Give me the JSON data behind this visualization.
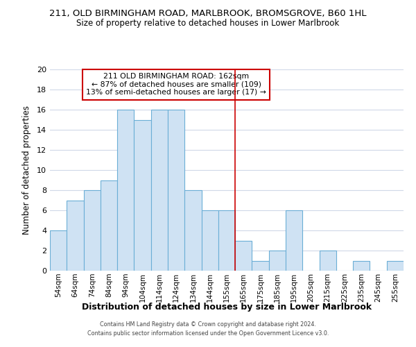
{
  "title": "211, OLD BIRMINGHAM ROAD, MARLBROOK, BROMSGROVE, B60 1HL",
  "subtitle": "Size of property relative to detached houses in Lower Marlbrook",
  "xlabel": "Distribution of detached houses by size in Lower Marlbrook",
  "ylabel": "Number of detached properties",
  "bar_labels": [
    "54sqm",
    "64sqm",
    "74sqm",
    "84sqm",
    "94sqm",
    "104sqm",
    "114sqm",
    "124sqm",
    "134sqm",
    "144sqm",
    "155sqm",
    "165sqm",
    "175sqm",
    "185sqm",
    "195sqm",
    "205sqm",
    "215sqm",
    "225sqm",
    "235sqm",
    "245sqm",
    "255sqm"
  ],
  "bar_values": [
    4,
    7,
    8,
    9,
    16,
    15,
    16,
    16,
    8,
    6,
    6,
    3,
    1,
    2,
    6,
    0,
    2,
    0,
    1,
    0,
    1
  ],
  "bar_color": "#cfe2f3",
  "bar_edgecolor": "#6baed6",
  "vline_index": 10.5,
  "vline_color": "#cc0000",
  "annotation_title": "211 OLD BIRMINGHAM ROAD: 162sqm",
  "annotation_line1": "← 87% of detached houses are smaller (109)",
  "annotation_line2": "13% of semi-detached houses are larger (17) →",
  "annotation_box_edgecolor": "#cc0000",
  "ylim": [
    0,
    20
  ],
  "yticks": [
    0,
    2,
    4,
    6,
    8,
    10,
    12,
    14,
    16,
    18,
    20
  ],
  "footer_line1": "Contains HM Land Registry data © Crown copyright and database right 2024.",
  "footer_line2": "Contains public sector information licensed under the Open Government Licence v3.0.",
  "background_color": "#ffffff",
  "grid_color": "#d0d8e8"
}
